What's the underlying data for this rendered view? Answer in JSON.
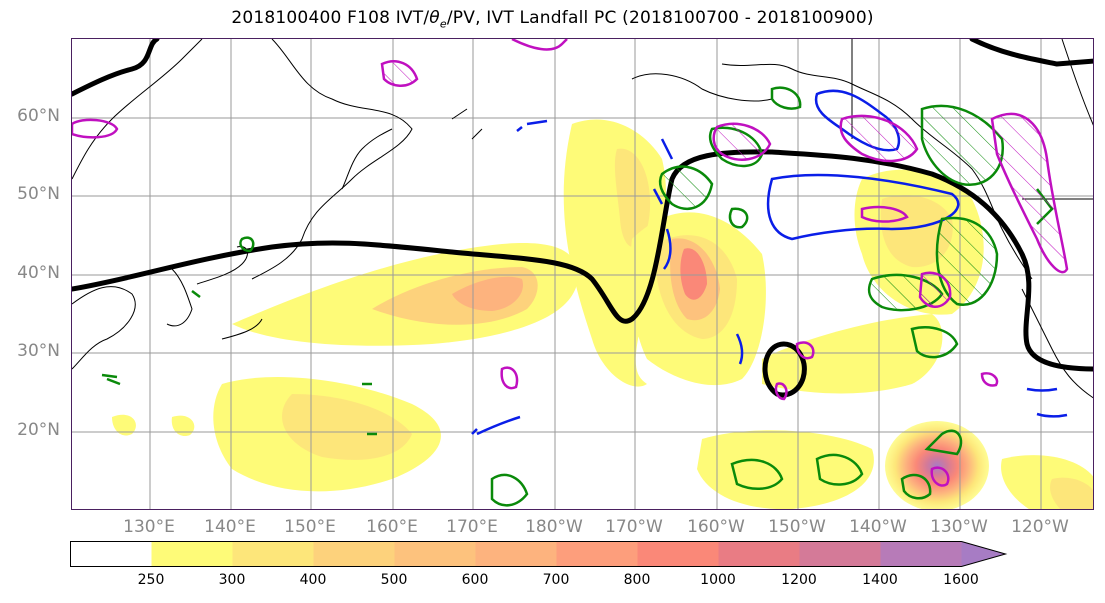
{
  "title": "2018100400 F108 IVT/θ_e/PV, IVT Landfall PC (2018100700 - 2018100900)",
  "title_parts": {
    "prefix": "2018100400 F108 IVT/",
    "theta": "θ",
    "sub": "e",
    "suffix": "/PV, IVT Landfall PC (2018100700 - 2018100900)"
  },
  "lat_labels": [
    "60°N",
    "50°N",
    "40°N",
    "30°N",
    "20°N"
  ],
  "lon_labels": [
    "130°E",
    "140°E",
    "150°E",
    "160°E",
    "170°E",
    "180°W",
    "170°W",
    "160°W",
    "150°W",
    "140°W",
    "130°W",
    "120°W"
  ],
  "colorbar": {
    "levels": [
      "250",
      "300",
      "400",
      "500",
      "600",
      "700",
      "800",
      "1000",
      "1200",
      "1400",
      "1600"
    ],
    "colors": [
      "#ffffff",
      "#fefb78",
      "#fde67a",
      "#fdd27c",
      "#fdc27d",
      "#fdb37e",
      "#fd9e7c",
      "#fa8878",
      "#e97c84",
      "#d47a98",
      "#b77bb8",
      "#a77cc4"
    ]
  },
  "colors": {
    "ivt_contour": "#000000",
    "pv_green": "#0a8a0a",
    "theta_blue": "#0a1ee8",
    "pc_magenta": "#c010c0",
    "coast": "#000000",
    "grid": "#9a9a9a"
  }
}
